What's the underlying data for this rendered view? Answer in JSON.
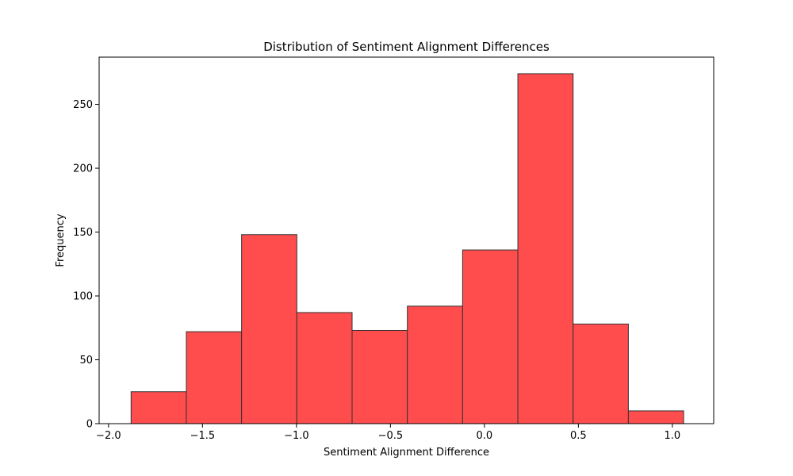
{
  "chart_data": {
    "type": "bar",
    "title": "Distribution of Sentiment Alignment Differences",
    "xlabel": "Sentiment Alignment Difference",
    "ylabel": "Frequency",
    "xlim": [
      -2.05,
      1.22
    ],
    "ylim": [
      0,
      287
    ],
    "x_ticks": [
      -2.0,
      -1.5,
      -1.0,
      -0.5,
      0.0,
      0.5,
      1.0
    ],
    "x_tick_labels": [
      "−2.0",
      "−1.5",
      "−1.0",
      "−0.5",
      "0.0",
      "0.5",
      "1.0"
    ],
    "y_ticks": [
      0,
      50,
      100,
      150,
      200,
      250
    ],
    "y_tick_labels": [
      "0",
      "50",
      "100",
      "150",
      "200",
      "250"
    ],
    "bin_edges": [
      -1.88,
      -1.586,
      -1.292,
      -0.998,
      -0.704,
      -0.41,
      -0.116,
      0.178,
      0.472,
      0.766,
      1.06
    ],
    "values": [
      25,
      72,
      148,
      87,
      73,
      92,
      136,
      274,
      78,
      10
    ],
    "grid": false,
    "legend": false,
    "colors": {
      "bar_fill": "#ff4c4c",
      "bar_edge": "#333333",
      "axis": "#000000"
    }
  }
}
